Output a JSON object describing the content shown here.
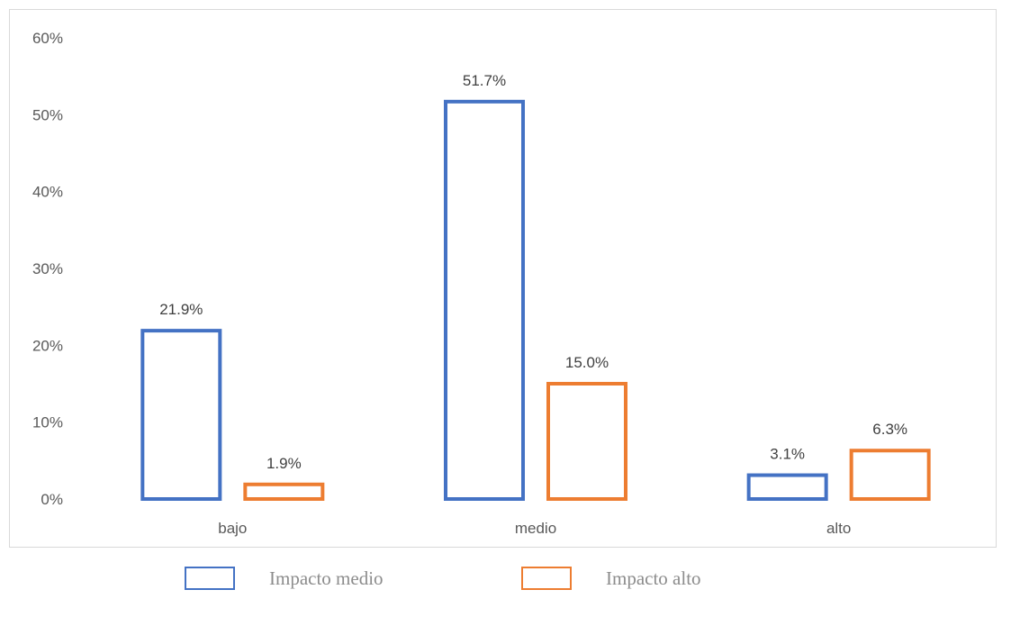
{
  "chart_data": {
    "type": "bar",
    "categories": [
      "bajo",
      "medio",
      "alto"
    ],
    "series": [
      {
        "name": "Impacto medio",
        "values": [
          21.9,
          51.7,
          3.1
        ],
        "labels": [
          "21.9%",
          "51.7%",
          "3.1%"
        ],
        "color": "#4472C4"
      },
      {
        "name": "Impacto alto",
        "values": [
          1.9,
          15.0,
          6.3
        ],
        "labels": [
          "1.9%",
          "15.0%",
          "6.3%"
        ],
        "color": "#ED7D31"
      }
    ],
    "ylim": [
      0,
      60
    ],
    "yticks": [
      "0%",
      "10%",
      "20%",
      "30%",
      "40%",
      "50%",
      "60%"
    ],
    "grid": false,
    "legend": "bottom",
    "bar_style": "outline"
  }
}
